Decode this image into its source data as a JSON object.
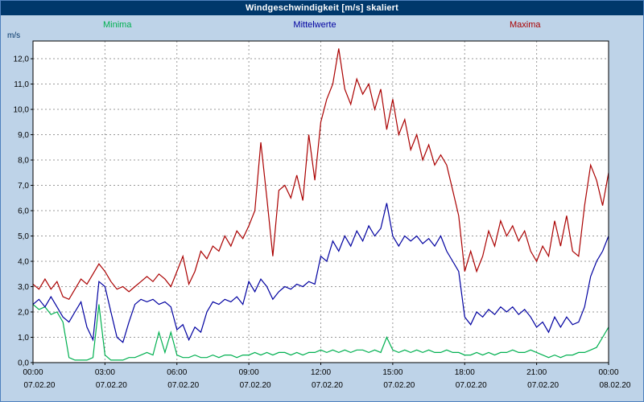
{
  "window": {
    "title": "Windgeschwindigkeit [m/s] skaliert"
  },
  "legend": {
    "minima": "Minima",
    "mittelwerte": "Mittelwerte",
    "maxima": "Maxima"
  },
  "colors": {
    "titlebar_bg": "#00386b",
    "titlebar_text": "#ffffff",
    "frame_bg": "#bed3e8",
    "plot_bg": "#ffffff",
    "grid": "#999999",
    "axis": "#000000",
    "tick_text": "#000000",
    "unit_label": "#003366",
    "minima": "#00b050",
    "mittelwerte": "#0000a0",
    "maxima": "#aa0000"
  },
  "chart_data": {
    "type": "line",
    "title": "Windgeschwindigkeit [m/s] skaliert",
    "xlabel": "",
    "ylabel": "m/s",
    "ylim": [
      0,
      12.7
    ],
    "grid": true,
    "legend_position": "top",
    "yticks": [
      0,
      1,
      2,
      3,
      4,
      5,
      6,
      7,
      8,
      9,
      10,
      11,
      12
    ],
    "ytick_labels": [
      "0,0",
      "1,0",
      "2,0",
      "3,0",
      "4,0",
      "5,0",
      "6,0",
      "7,0",
      "8,0",
      "9,0",
      "10,0",
      "11,0",
      "12,0"
    ],
    "x_hours_range": [
      0,
      24
    ],
    "sample_interval_hours": 0.25,
    "xticks": [
      {
        "hour": 0,
        "time": "00:00",
        "date": "07.02.20"
      },
      {
        "hour": 3,
        "time": "03:00",
        "date": "07.02.20"
      },
      {
        "hour": 6,
        "time": "06:00",
        "date": "07.02.20"
      },
      {
        "hour": 9,
        "time": "09:00",
        "date": "07.02.20"
      },
      {
        "hour": 12,
        "time": "12:00",
        "date": "07.02.20"
      },
      {
        "hour": 15,
        "time": "15:00",
        "date": "07.02.20"
      },
      {
        "hour": 18,
        "time": "18:00",
        "date": "07.02.20"
      },
      {
        "hour": 21,
        "time": "21:00",
        "date": "07.02.20"
      },
      {
        "hour": 24,
        "time": "00:00",
        "date": "08.02.20"
      }
    ],
    "series": [
      {
        "name": "Minima",
        "color": "#00b050",
        "values": [
          2.3,
          2.1,
          2.2,
          1.9,
          2.0,
          1.6,
          0.2,
          0.1,
          0.1,
          0.1,
          0.2,
          2.3,
          0.3,
          0.1,
          0.1,
          0.1,
          0.2,
          0.2,
          0.3,
          0.4,
          0.3,
          1.2,
          0.4,
          1.2,
          0.3,
          0.2,
          0.2,
          0.3,
          0.2,
          0.2,
          0.3,
          0.2,
          0.3,
          0.3,
          0.2,
          0.3,
          0.3,
          0.4,
          0.3,
          0.4,
          0.3,
          0.4,
          0.4,
          0.3,
          0.4,
          0.3,
          0.4,
          0.4,
          0.5,
          0.4,
          0.5,
          0.4,
          0.5,
          0.4,
          0.5,
          0.5,
          0.4,
          0.5,
          0.4,
          1.0,
          0.5,
          0.4,
          0.5,
          0.4,
          0.5,
          0.4,
          0.5,
          0.4,
          0.4,
          0.5,
          0.4,
          0.4,
          0.3,
          0.3,
          0.4,
          0.3,
          0.4,
          0.3,
          0.4,
          0.4,
          0.5,
          0.4,
          0.4,
          0.5,
          0.4,
          0.3,
          0.2,
          0.3,
          0.2,
          0.3,
          0.3,
          0.4,
          0.4,
          0.5,
          0.6,
          1.0,
          1.4
        ]
      },
      {
        "name": "Mittelwerte",
        "color": "#0000a0",
        "values": [
          2.3,
          2.5,
          2.2,
          2.6,
          2.2,
          1.8,
          1.6,
          2.0,
          2.4,
          1.4,
          0.9,
          3.2,
          3.0,
          2.0,
          1.0,
          0.8,
          1.6,
          2.3,
          2.5,
          2.4,
          2.5,
          2.3,
          2.4,
          2.2,
          1.3,
          1.5,
          0.9,
          1.4,
          1.2,
          2.0,
          2.4,
          2.3,
          2.5,
          2.4,
          2.6,
          2.3,
          3.2,
          2.8,
          3.3,
          3.0,
          2.5,
          2.8,
          3.0,
          2.9,
          3.1,
          3.0,
          3.2,
          3.1,
          4.2,
          4.0,
          4.8,
          4.4,
          5.0,
          4.6,
          5.2,
          4.8,
          5.4,
          5.0,
          5.3,
          6.3,
          5.0,
          4.6,
          5.0,
          4.8,
          5.0,
          4.7,
          4.9,
          4.6,
          5.0,
          4.4,
          4.0,
          3.6,
          1.8,
          1.5,
          2.0,
          1.8,
          2.1,
          1.9,
          2.2,
          2.0,
          2.2,
          1.9,
          2.1,
          1.8,
          1.4,
          1.6,
          1.2,
          1.8,
          1.4,
          1.8,
          1.5,
          1.6,
          2.2,
          3.4,
          4.0,
          4.4,
          5.0
        ]
      },
      {
        "name": "Maxima",
        "color": "#aa0000",
        "values": [
          3.1,
          2.9,
          3.3,
          2.9,
          3.2,
          2.6,
          2.5,
          2.9,
          3.3,
          3.1,
          3.5,
          3.9,
          3.6,
          3.2,
          2.9,
          3.0,
          2.8,
          3.0,
          3.2,
          3.4,
          3.2,
          3.5,
          3.3,
          3.0,
          3.6,
          4.2,
          3.1,
          3.6,
          4.4,
          4.1,
          4.6,
          4.4,
          5.0,
          4.6,
          5.2,
          4.9,
          5.4,
          6.0,
          8.7,
          6.5,
          4.2,
          6.8,
          7.0,
          6.5,
          7.4,
          6.4,
          9.0,
          7.2,
          9.5,
          10.4,
          11.0,
          12.4,
          10.8,
          10.2,
          11.2,
          10.6,
          11.0,
          10.0,
          10.8,
          9.2,
          10.4,
          9.0,
          9.6,
          8.4,
          9.0,
          8.0,
          8.6,
          7.8,
          8.2,
          7.8,
          6.8,
          5.8,
          3.6,
          4.4,
          3.6,
          4.2,
          5.2,
          4.6,
          5.6,
          5.0,
          5.4,
          4.8,
          5.2,
          4.4,
          4.0,
          4.6,
          4.2,
          5.6,
          4.6,
          5.8,
          4.4,
          4.2,
          6.2,
          7.8,
          7.2,
          6.2,
          7.5
        ]
      }
    ]
  }
}
